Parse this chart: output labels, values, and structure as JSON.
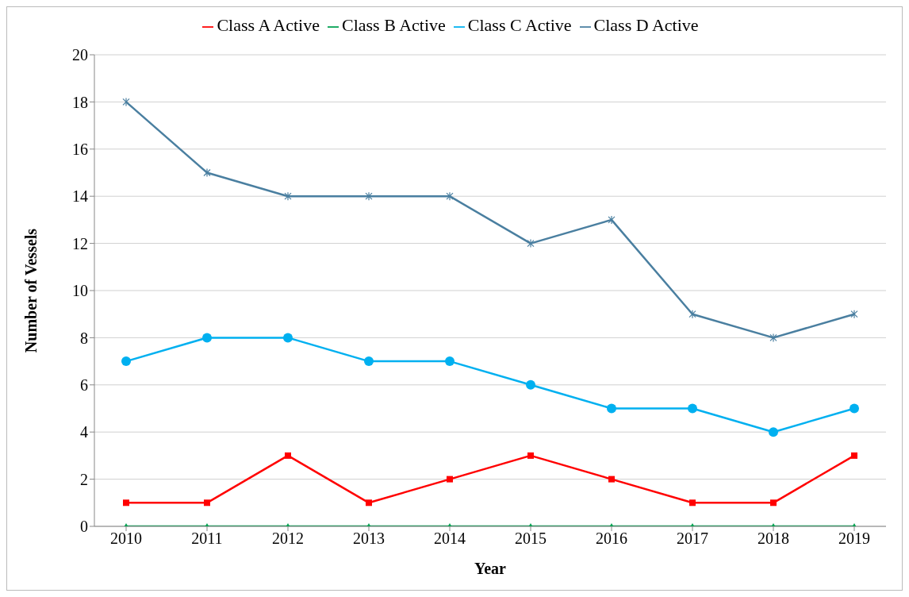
{
  "chart_data": {
    "type": "line",
    "xlabel": "Year",
    "ylabel": "Number of Vessels",
    "categories": [
      "2010",
      "2011",
      "2012",
      "2013",
      "2014",
      "2015",
      "2016",
      "2017",
      "2018",
      "2019"
    ],
    "series": [
      {
        "name": "Class A Active",
        "color": "#ff0000",
        "marker": "square",
        "values": [
          1,
          1,
          3,
          1,
          2,
          3,
          2,
          1,
          1,
          3
        ]
      },
      {
        "name": "Class B Active",
        "color": "#00a050",
        "marker": "triangle",
        "values": [
          0,
          0,
          0,
          0,
          0,
          0,
          0,
          0,
          0,
          0
        ]
      },
      {
        "name": "Class C Active",
        "color": "#00b0f0",
        "marker": "circle",
        "values": [
          7,
          8,
          8,
          7,
          7,
          6,
          5,
          5,
          4,
          5
        ]
      },
      {
        "name": "Class D Active",
        "color": "#4a7fa0",
        "marker": "cross",
        "values": [
          18,
          15,
          14,
          14,
          14,
          12,
          13,
          9,
          8,
          9
        ]
      }
    ],
    "ylim": [
      0,
      20
    ],
    "yticks": [
      0,
      2,
      4,
      6,
      8,
      10,
      12,
      14,
      16,
      18,
      20
    ],
    "grid": "y",
    "legend": "top"
  }
}
